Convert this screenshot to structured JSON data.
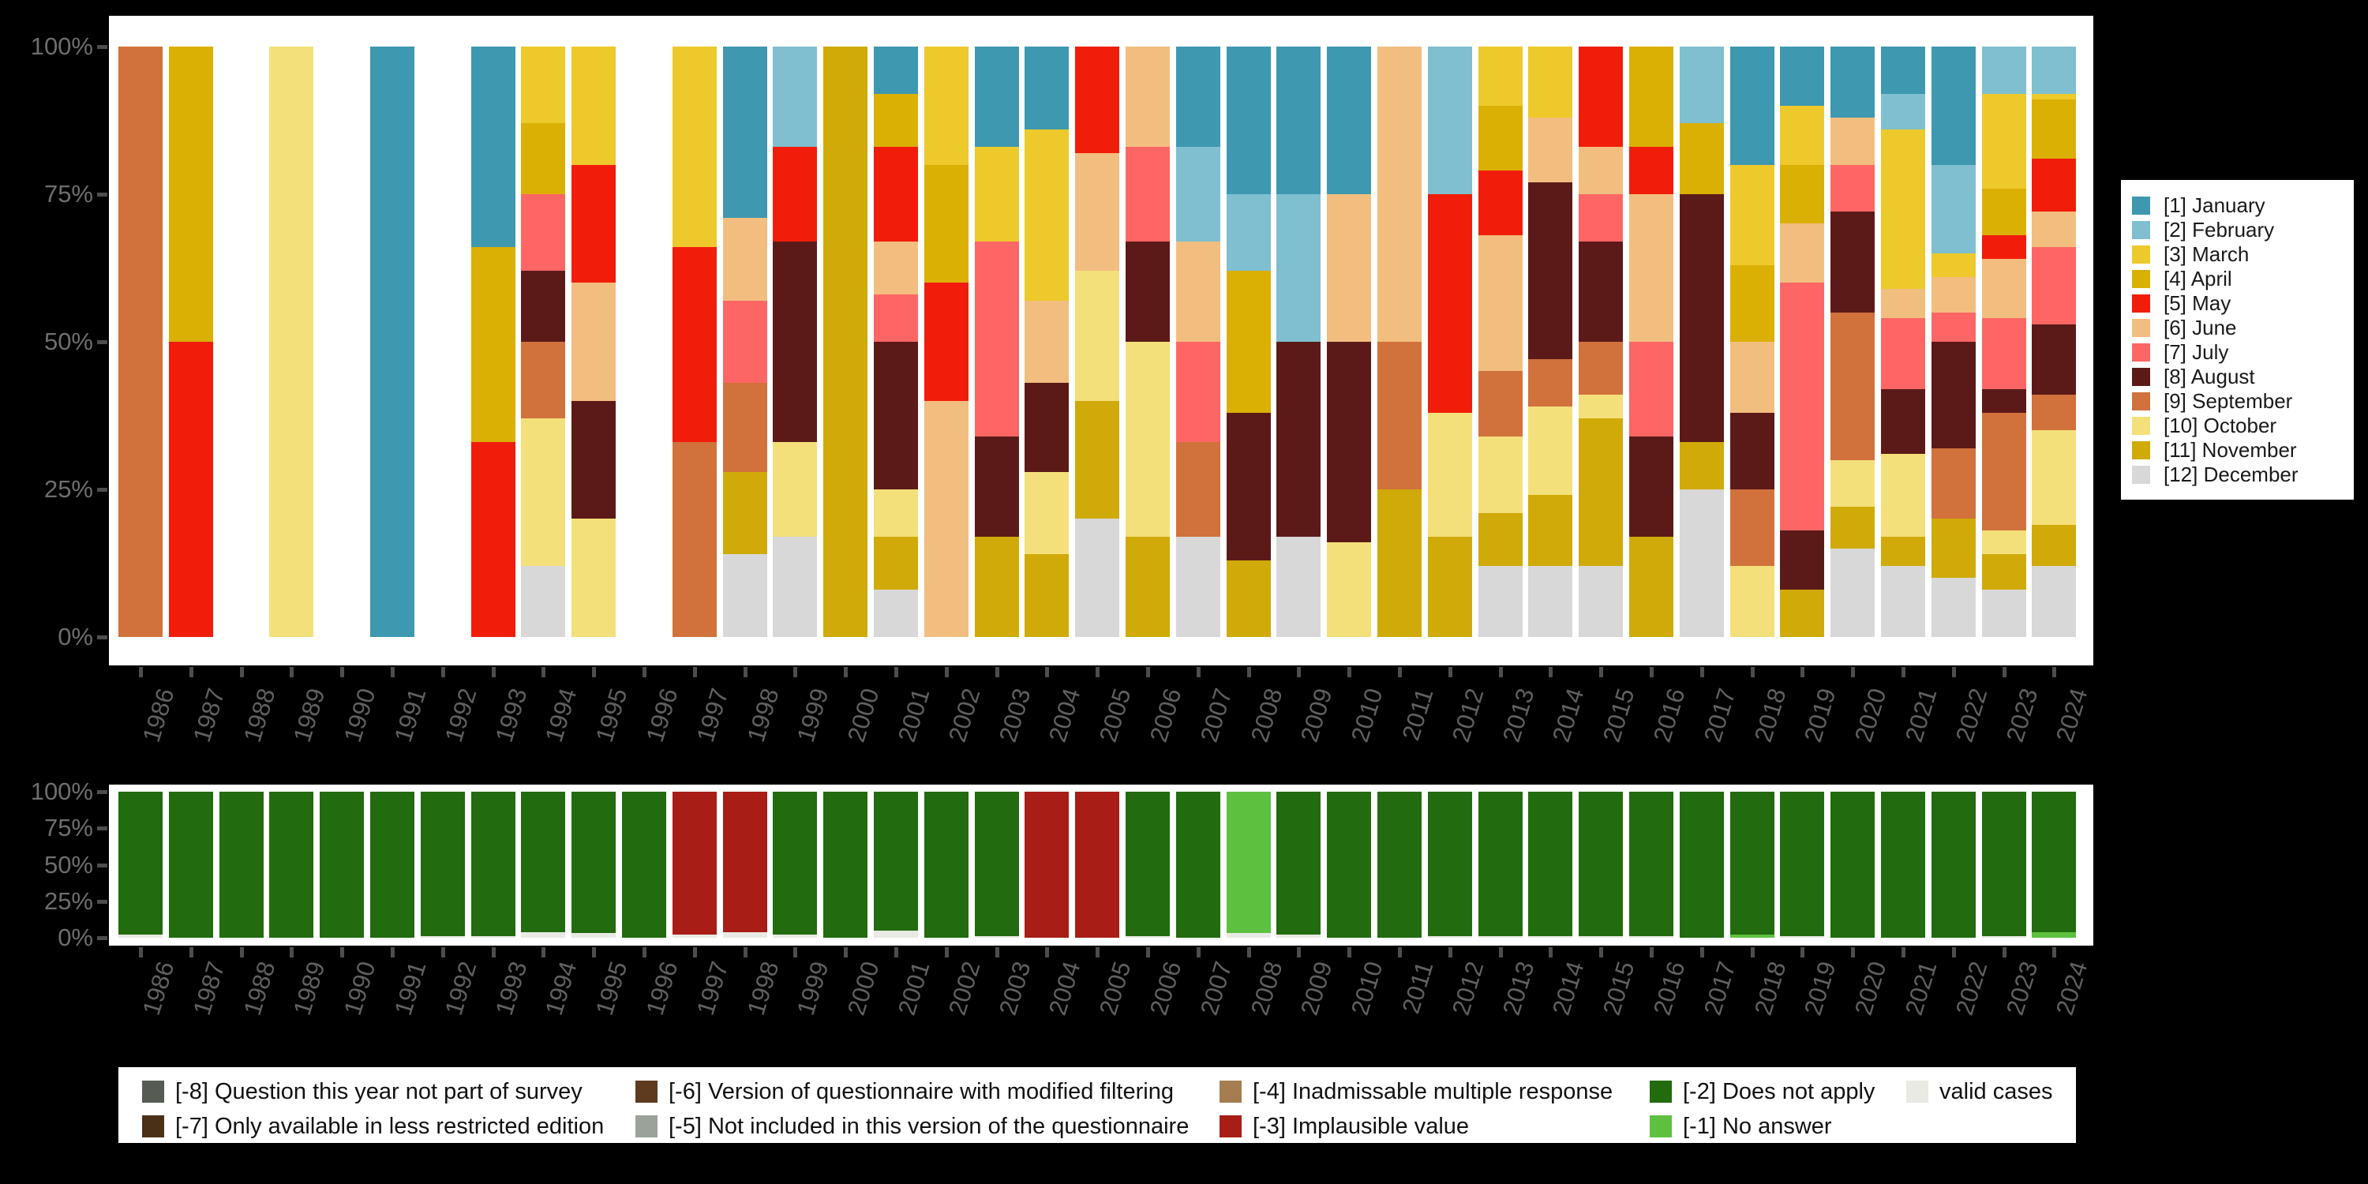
{
  "axes": {
    "y_tick_labels": [
      "0%",
      "25%",
      "50%",
      "75%",
      "100%"
    ],
    "years": [
      "1986",
      "1987",
      "1988",
      "1989",
      "1990",
      "1991",
      "1992",
      "1993",
      "1994",
      "1995",
      "1996",
      "1997",
      "1998",
      "1999",
      "2000",
      "2001",
      "2002",
      "2003",
      "2004",
      "2005",
      "2006",
      "2007",
      "2008",
      "2009",
      "2010",
      "2011",
      "2012",
      "2013",
      "2014",
      "2015",
      "2016",
      "2017",
      "2018",
      "2019",
      "2020",
      "2021",
      "2022",
      "2023",
      "2024"
    ]
  },
  "month_legend": {
    "entries": [
      {
        "label": "[1] January",
        "color": "#3D98B0"
      },
      {
        "label": "[2] February",
        "color": "#7FBFCF"
      },
      {
        "label": "[3] March",
        "color": "#EDC92B"
      },
      {
        "label": "[4] April",
        "color": "#DBB005"
      },
      {
        "label": "[5] May",
        "color": "#F11D0A"
      },
      {
        "label": "[6] June",
        "color": "#F2BE7F"
      },
      {
        "label": "[7] July",
        "color": "#FD6665"
      },
      {
        "label": "[8] August",
        "color": "#5B1A18"
      },
      {
        "label": "[9] September",
        "color": "#D1713B"
      },
      {
        "label": "[10] October",
        "color": "#F4E07B"
      },
      {
        "label": "[11] November",
        "color": "#D0AA08"
      },
      {
        "label": "[12] December",
        "color": "#D8D8D8"
      }
    ]
  },
  "missing_legend": {
    "entries": [
      {
        "col": 0,
        "row": 0,
        "label": "[-8] Question this year not part of survey",
        "color": "#565C53"
      },
      {
        "col": 0,
        "row": 1,
        "label": "[-7] Only available in less restricted edition",
        "color": "#4B3018"
      },
      {
        "col": 1,
        "row": 0,
        "label": "[-6] Version of questionnaire with modified filtering",
        "color": "#5E3A1F"
      },
      {
        "col": 1,
        "row": 1,
        "label": "[-5] Not included in this version of the questionnaire",
        "color": "#9AA29A"
      },
      {
        "col": 2,
        "row": 0,
        "label": "[-4] Inadmissable multiple response",
        "color": "#A67D50"
      },
      {
        "col": 2,
        "row": 1,
        "label": "[-3] Implausible value",
        "color": "#A81D15"
      },
      {
        "col": 3,
        "row": 0,
        "label": "[-2] Does not apply",
        "color": "#226B0E"
      },
      {
        "col": 3,
        "row": 1,
        "label": "[-1] No answer",
        "color": "#5DC13F"
      },
      {
        "col": 4,
        "row": 0,
        "label": "valid cases",
        "color": "#E8EAE3"
      }
    ]
  },
  "chart_data": [
    {
      "type": "bar",
      "stacked": true,
      "unit": "percent of valid answers",
      "title": "",
      "xlabel": "",
      "ylabel": "",
      "ylim": [
        0,
        100
      ],
      "grid": false,
      "legend_position": "right",
      "categories": [
        "1986",
        "1987",
        "1988",
        "1989",
        "1990",
        "1991",
        "1992",
        "1993",
        "1994",
        "1995",
        "1996",
        "1997",
        "1998",
        "1999",
        "2000",
        "2001",
        "2002",
        "2003",
        "2004",
        "2005",
        "2006",
        "2007",
        "2008",
        "2009",
        "2010",
        "2011",
        "2012",
        "2013",
        "2014",
        "2015",
        "2016",
        "2017",
        "2018",
        "2019",
        "2020",
        "2021",
        "2022",
        "2023",
        "2024"
      ],
      "series_key": "interview month 1=January ... 12=December; values are percent per year, stacked December at bottom to January at top; empty object = no bar (year not surveyed)",
      "stack_order_bottom_to_top": [
        "12",
        "11",
        "10",
        "9",
        "8",
        "7",
        "6",
        "5",
        "4",
        "3",
        "2",
        "1"
      ],
      "colors": {
        "1": "#3D98B0",
        "2": "#7FBFCF",
        "3": "#EDC92B",
        "4": "#DBB005",
        "5": "#F11D0A",
        "6": "#F2BE7F",
        "7": "#FD6665",
        "8": "#5B1A18",
        "9": "#D1713B",
        "10": "#F4E07B",
        "11": "#D0AA08",
        "12": "#D8D8D8"
      },
      "bars": {
        "1986": {
          "9": 100
        },
        "1987": {
          "4": 50,
          "5": 50
        },
        "1988": {},
        "1989": {
          "10": 100
        },
        "1990": {},
        "1991": {
          "1": 100
        },
        "1992": {},
        "1993": {
          "1": 34,
          "4": 33,
          "5": 33
        },
        "1994": {
          "3": 13,
          "4": 12,
          "7": 13,
          "8": 12,
          "9": 13,
          "10": 25,
          "12": 12
        },
        "1995": {
          "3": 20,
          "5": 20,
          "6": 20,
          "8": 20,
          "10": 20
        },
        "1996": {},
        "1997": {
          "3": 34,
          "5": 33,
          "9": 33
        },
        "1998": {
          "1": 29,
          "6": 14,
          "7": 14,
          "9": 15,
          "11": 14,
          "12": 14
        },
        "1999": {
          "2": 17,
          "5": 16,
          "8": 34,
          "10": 16,
          "12": 17
        },
        "2000": {
          "11": 100
        },
        "2001": {
          "1": 8,
          "4": 9,
          "5": 16,
          "6": 9,
          "7": 8,
          "8": 25,
          "10": 8,
          "11": 9,
          "12": 8
        },
        "2002": {
          "3": 20,
          "4": 20,
          "5": 20,
          "6": 40
        },
        "2003": {
          "1": 17,
          "3": 16,
          "7": 33,
          "8": 17,
          "11": 17
        },
        "2004": {
          "1": 14,
          "3": 29,
          "6": 14,
          "8": 15,
          "10": 14,
          "11": 14
        },
        "2005": {
          "5": 18,
          "6": 20,
          "10": 22,
          "11": 20,
          "12": 20
        },
        "2006": {
          "6": 17,
          "7": 16,
          "8": 17,
          "10": 33,
          "11": 17
        },
        "2007": {
          "1": 17,
          "2": 16,
          "6": 17,
          "7": 17,
          "9": 16,
          "12": 17
        },
        "2008": {
          "1": 25,
          "2": 13,
          "4": 24,
          "8": 25,
          "11": 13
        },
        "2009": {
          "1": 25,
          "2": 25,
          "8": 33,
          "12": 17
        },
        "2010": {
          "1": 25,
          "6": 25,
          "8": 34,
          "10": 16
        },
        "2011": {
          "6": 50,
          "9": 25,
          "11": 25
        },
        "2012": {
          "2": 25,
          "5": 37,
          "10": 21,
          "11": 17
        },
        "2013": {
          "3": 10,
          "4": 11,
          "5": 11,
          "6": 23,
          "9": 11,
          "10": 13,
          "11": 9,
          "12": 12
        },
        "2014": {
          "3": 12,
          "6": 11,
          "8": 30,
          "9": 8,
          "10": 15,
          "11": 12,
          "12": 12
        },
        "2015": {
          "5": 17,
          "6": 8,
          "7": 8,
          "8": 17,
          "9": 9,
          "10": 4,
          "11": 25,
          "12": 12
        },
        "2016": {
          "4": 17,
          "5": 8,
          "6": 25,
          "7": 16,
          "8": 17,
          "11": 17
        },
        "2017": {
          "2": 13,
          "4": 12,
          "8": 42,
          "11": 8,
          "12": 25
        },
        "2018": {
          "1": 20,
          "3": 17,
          "4": 13,
          "6": 12,
          "8": 13,
          "9": 13,
          "10": 12
        },
        "2019": {
          "1": 10,
          "3": 10,
          "4": 10,
          "6": 10,
          "7": 42,
          "8": 10,
          "11": 8
        },
        "2020": {
          "1": 12,
          "6": 8,
          "7": 8,
          "8": 17,
          "9": 25,
          "10": 8,
          "11": 7,
          "12": 15
        },
        "2021": {
          "1": 8,
          "2": 6,
          "3": 27,
          "6": 5,
          "7": 12,
          "8": 11,
          "10": 14,
          "11": 5,
          "12": 12
        },
        "2022": {
          "1": 20,
          "2": 15,
          "3": 4,
          "6": 6,
          "7": 5,
          "8": 18,
          "9": 12,
          "11": 10,
          "12": 10
        },
        "2023": {
          "2": 8,
          "3": 16,
          "4": 8,
          "5": 4,
          "6": 10,
          "7": 12,
          "8": 4,
          "9": 20,
          "10": 4,
          "11": 6,
          "12": 8
        },
        "2024": {
          "2": 8,
          "3": 1,
          "4": 10,
          "5": 9,
          "6": 6,
          "7": 13,
          "8": 12,
          "9": 6,
          "10": 16,
          "11": 7,
          "12": 12
        }
      }
    },
    {
      "type": "bar",
      "stacked": true,
      "unit": "percent of all cases",
      "title": "",
      "xlabel": "",
      "ylabel": "",
      "ylim": [
        0,
        100
      ],
      "grid": false,
      "legend_position": "bottom",
      "categories": [
        "1986",
        "1987",
        "1988",
        "1989",
        "1990",
        "1991",
        "1992",
        "1993",
        "1994",
        "1995",
        "1996",
        "1997",
        "1998",
        "1999",
        "2000",
        "2001",
        "2002",
        "2003",
        "2004",
        "2005",
        "2006",
        "2007",
        "2008",
        "2009",
        "2010",
        "2011",
        "2012",
        "2013",
        "2014",
        "2015",
        "2016",
        "2017",
        "2018",
        "2019",
        "2020",
        "2021",
        "2022",
        "2023",
        "2024"
      ],
      "series_key": "missing-value codes per year; stacked valid cases at bottom, then -1, -2, -3",
      "stack_order_bottom_to_top": [
        "valid",
        "-1",
        "-2",
        "-3"
      ],
      "colors": {
        "-8": "#565C53",
        "-7": "#4B3018",
        "-6": "#5E3A1F",
        "-5": "#9AA29A",
        "-4": "#A67D50",
        "-3": "#A81D15",
        "-2": "#226B0E",
        "-1": "#5DC13F",
        "valid": "#E8EAE3"
      },
      "bars": {
        "1986": {
          "valid": 2,
          "-2": 98
        },
        "1987": {
          "-2": 100
        },
        "1988": {
          "-2": 100
        },
        "1989": {
          "-2": 100
        },
        "1990": {
          "-2": 100
        },
        "1991": {
          "-2": 100
        },
        "1992": {
          "valid": 1,
          "-2": 99
        },
        "1993": {
          "valid": 1,
          "-2": 99
        },
        "1994": {
          "valid": 4,
          "-2": 96
        },
        "1995": {
          "valid": 3,
          "-2": 97
        },
        "1996": {
          "-2": 100
        },
        "1997": {
          "valid": 2,
          "-3": 98
        },
        "1998": {
          "valid": 4,
          "-3": 96
        },
        "1999": {
          "valid": 2,
          "-2": 98
        },
        "2000": {
          "-2": 100
        },
        "2001": {
          "valid": 5,
          "-2": 95
        },
        "2002": {
          "-2": 100
        },
        "2003": {
          "valid": 1,
          "-2": 99
        },
        "2004": {
          "-3": 100
        },
        "2005": {
          "-3": 100
        },
        "2006": {
          "valid": 1,
          "-2": 99
        },
        "2007": {
          "-2": 100
        },
        "2008": {
          "valid": 3,
          "-1": 97
        },
        "2009": {
          "valid": 2,
          "-2": 98
        },
        "2010": {
          "-2": 100
        },
        "2011": {
          "-2": 100
        },
        "2012": {
          "valid": 1,
          "-2": 99
        },
        "2013": {
          "valid": 1,
          "-2": 99
        },
        "2014": {
          "valid": 1,
          "-2": 99
        },
        "2015": {
          "valid": 1,
          "-2": 99
        },
        "2016": {
          "valid": 1,
          "-2": 99
        },
        "2017": {
          "-2": 100
        },
        "2018": {
          "-1": 2,
          "-2": 98
        },
        "2019": {
          "valid": 1,
          "-2": 99
        },
        "2020": {
          "-2": 100
        },
        "2021": {
          "-2": 100
        },
        "2022": {
          "-2": 100
        },
        "2023": {
          "valid": 1,
          "-2": 99
        },
        "2024": {
          "-1": 4,
          "-2": 96
        }
      }
    }
  ]
}
